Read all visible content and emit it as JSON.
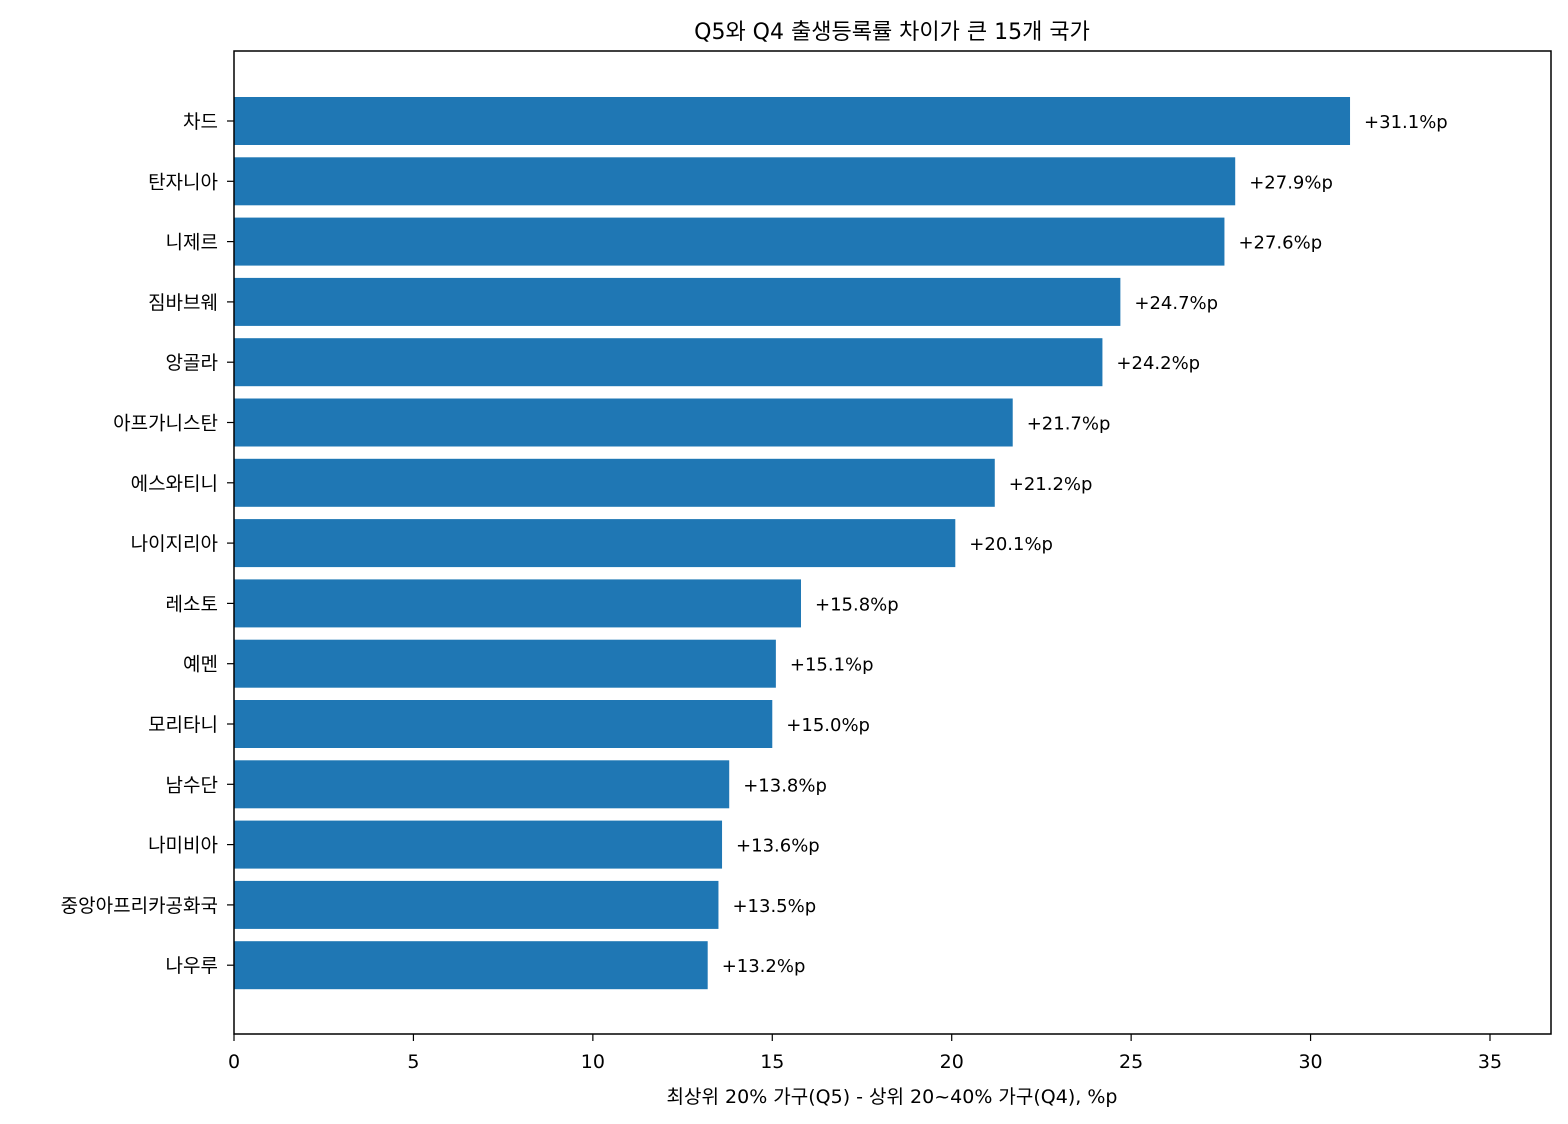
{
  "chart_data": {
    "type": "bar",
    "orientation": "horizontal",
    "title": "Q5와 Q4 출생등록률 차이가 큰 15개 국가",
    "xlabel": "최상위 20% 가구(Q5) - 상위 20~40% 가구(Q4), %p",
    "ylabel": "",
    "xlim": [
      0,
      36.7
    ],
    "xticks": [
      0,
      5,
      10,
      15,
      20,
      25,
      30,
      35
    ],
    "xtick_labels": [
      "0",
      "5",
      "10",
      "15",
      "20",
      "25",
      "30",
      "35"
    ],
    "grid": false,
    "bar_color": "#1f77b4",
    "categories": [
      "차드",
      "탄자니아",
      "니제르",
      "짐바브웨",
      "앙골라",
      "아프가니스탄",
      "에스와티니",
      "나이지리아",
      "레소토",
      "예멘",
      "모리타니",
      "남수단",
      "나미비아",
      "중앙아프리카공화국",
      "나우루"
    ],
    "values": [
      31.1,
      27.9,
      27.6,
      24.7,
      24.2,
      21.7,
      21.2,
      20.1,
      15.8,
      15.1,
      15.0,
      13.8,
      13.6,
      13.5,
      13.2
    ],
    "data_labels": [
      "+31.1%p",
      "+27.9%p",
      "+27.6%p",
      "+24.7%p",
      "+24.2%p",
      "+21.7%p",
      "+21.2%p",
      "+20.1%p",
      "+15.8%p",
      "+15.1%p",
      "+15.0%p",
      "+13.8%p",
      "+13.6%p",
      "+13.5%p",
      "+13.2%p"
    ]
  }
}
